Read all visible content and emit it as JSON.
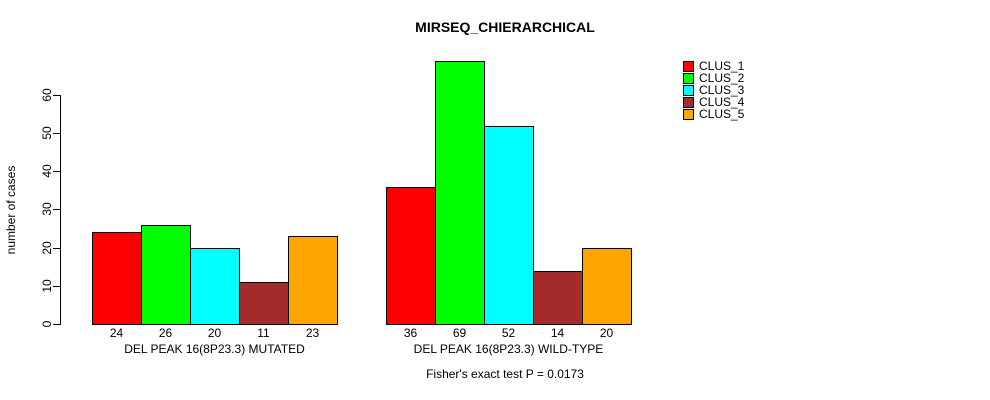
{
  "title": "MIRSEQ_CHIERARCHICAL",
  "y_axis": {
    "label": "number of cases",
    "ticks": [
      0,
      10,
      20,
      30,
      40,
      50,
      60
    ]
  },
  "footer": "Fisher's exact test P = 0.0173",
  "legend": {
    "items": [
      {
        "label": "CLUS_1",
        "color": "#FF0000"
      },
      {
        "label": "CLUS_2",
        "color": "#00FF00"
      },
      {
        "label": "CLUS_3",
        "color": "#00FFFF"
      },
      {
        "label": "CLUS_4",
        "color": "#A52A2A"
      },
      {
        "label": "CLUS_5",
        "color": "#FFA500"
      }
    ]
  },
  "chart_data": {
    "type": "bar",
    "title": "MIRSEQ_CHIERARCHICAL",
    "ylabel": "number of cases",
    "ylim": [
      0,
      60
    ],
    "yticks": [
      0,
      10,
      20,
      30,
      40,
      50,
      60
    ],
    "grid": false,
    "legend_position": "top-right",
    "bar_value_labels": true,
    "series": [
      "CLUS_1",
      "CLUS_2",
      "CLUS_3",
      "CLUS_4",
      "CLUS_5"
    ],
    "colors": [
      "#FF0000",
      "#00FF00",
      "#00FFFF",
      "#A52A2A",
      "#FFA500"
    ],
    "groups": [
      {
        "label": "DEL PEAK 16(8P23.3) MUTATED",
        "values": [
          24,
          26,
          20,
          11,
          23
        ]
      },
      {
        "label": "DEL PEAK 16(8P23.3) WILD-TYPE",
        "values": [
          36,
          69,
          52,
          14,
          20
        ]
      }
    ],
    "annotation": "Fisher's exact test P = 0.0173"
  }
}
